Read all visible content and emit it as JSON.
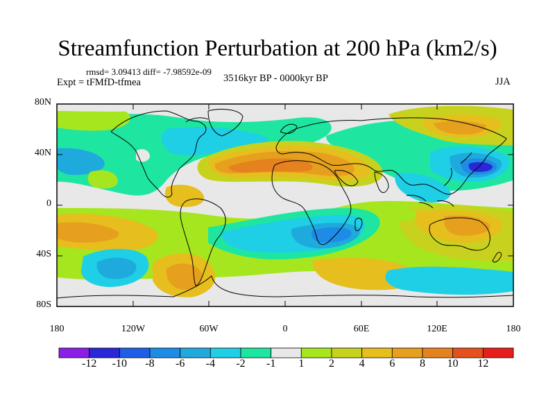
{
  "title": "Streamfunction Perturbation at 200 hPa (km2/s)",
  "stats": "rmsd= 3.09413 diff= -7.98592e-09",
  "experiment": "Expt = tFMfD-tfmea",
  "period": "3516kyr BP - 0000kyr BP",
  "season": "JJA",
  "lat_ticks": [
    "80N",
    "40N",
    "0",
    "40S",
    "80S"
  ],
  "lon_ticks": [
    "180",
    "120W",
    "60W",
    "0",
    "60E",
    "120E",
    "180"
  ],
  "colorbar": {
    "labels": [
      "-12",
      "-10",
      "-8",
      "-6",
      "-4",
      "-2",
      "-1",
      "1",
      "2",
      "4",
      "6",
      "8",
      "10",
      "12"
    ],
    "colors": [
      "#8c1ee6",
      "#2a27d6",
      "#1e5fe6",
      "#1e8ce6",
      "#1eaadd",
      "#1ecfe6",
      "#1ee6a0",
      "#e8e8e8",
      "#a6e61e",
      "#c8d21e",
      "#e6be1e",
      "#e6a01e",
      "#e6821e",
      "#e6501e",
      "#e61e1e"
    ]
  }
}
